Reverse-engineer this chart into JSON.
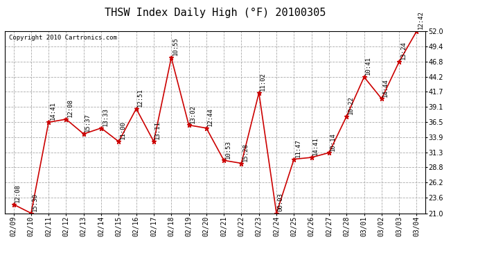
{
  "title": "THSW Index Daily High (°F) 20100305",
  "copyright": "Copyright 2010 Cartronics.com",
  "dates": [
    "02/09",
    "02/10",
    "02/11",
    "02/12",
    "02/13",
    "02/14",
    "02/15",
    "02/16",
    "02/17",
    "02/18",
    "02/19",
    "02/20",
    "02/21",
    "02/22",
    "02/23",
    "02/24",
    "02/25",
    "02/26",
    "02/27",
    "02/28",
    "03/01",
    "03/02",
    "03/03",
    "03/04"
  ],
  "values": [
    22.5,
    21.0,
    36.5,
    37.0,
    34.5,
    35.5,
    33.2,
    38.8,
    33.2,
    47.5,
    36.0,
    35.5,
    30.0,
    29.5,
    41.5,
    21.0,
    30.2,
    30.5,
    31.3,
    37.5,
    44.2,
    40.5,
    46.8,
    52.0
  ],
  "time_labels": [
    "12:08",
    "15:30",
    "14:41",
    "12:08",
    "15:37",
    "13:33",
    "11:00",
    "12:51",
    "13:11",
    "10:55",
    "13:02",
    "12:44",
    "10:53",
    "15:28",
    "11:02",
    "00:03",
    "11:47",
    "14:41",
    "10:14",
    "10:22",
    "10:41",
    "14:44",
    "13:24",
    "12:42"
  ],
  "ylim": [
    21.0,
    52.0
  ],
  "yticks": [
    21.0,
    23.6,
    26.2,
    28.8,
    31.3,
    33.9,
    36.5,
    39.1,
    41.7,
    44.2,
    46.8,
    49.4,
    52.0
  ],
  "line_color": "#cc0000",
  "marker_color": "#cc0000",
  "bg_color": "#ffffff",
  "grid_color": "#aaaaaa",
  "title_fontsize": 11,
  "label_fontsize": 6.5,
  "tick_fontsize": 7,
  "copyright_fontsize": 6.5
}
